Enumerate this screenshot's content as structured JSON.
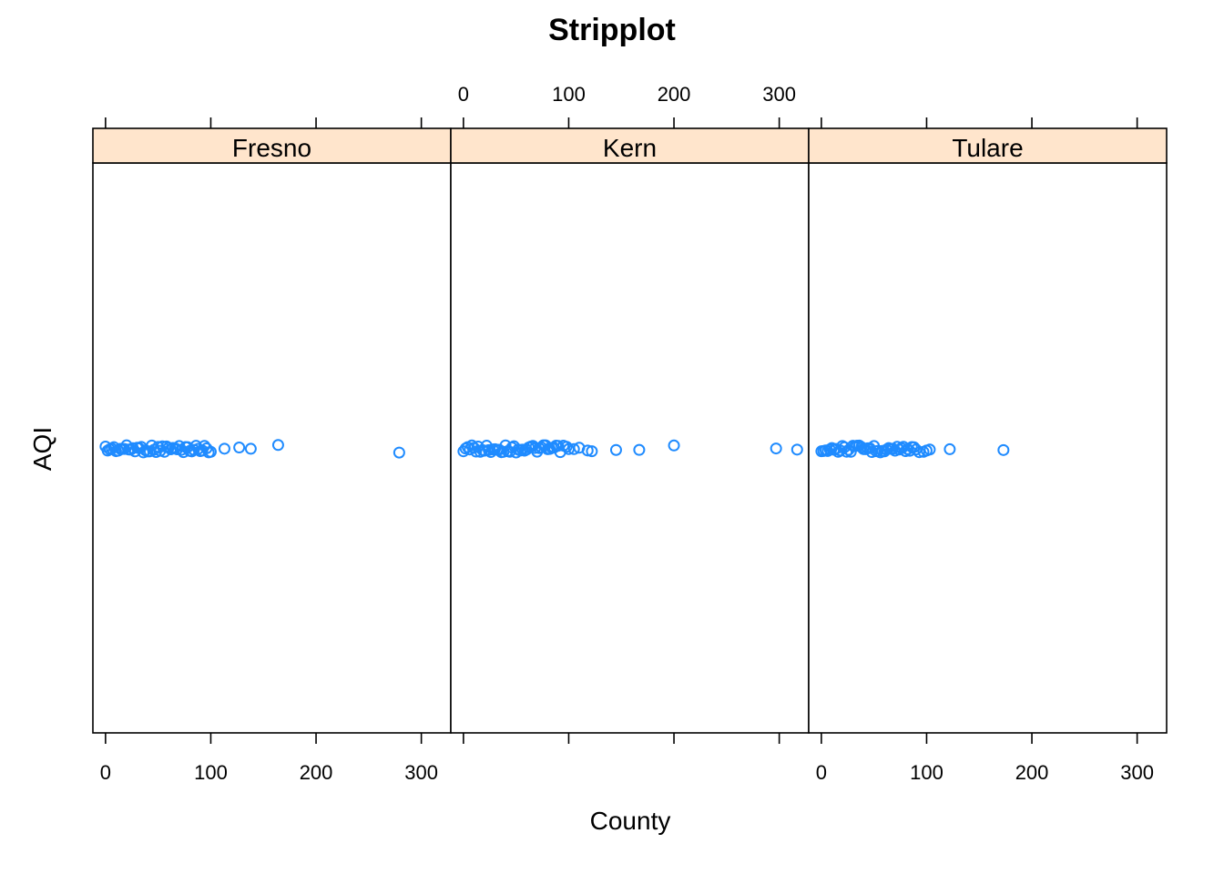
{
  "chart_data": {
    "type": "scatter",
    "title": "Stripplot",
    "xlabel": "County",
    "ylabel": "AQI",
    "xlim": [
      -12,
      328
    ],
    "x_ticks": [
      0,
      100,
      200,
      300
    ],
    "tick_labels": [
      "0",
      "100",
      "200",
      "300"
    ],
    "layout": "1x3 panels with shared x scale; tick labels alternate bottom (panels 1, 3) and top (panel 2)",
    "grid": false,
    "legend": "none",
    "colors": {
      "points": "#1f8bff",
      "strip": "#ffe5cc",
      "frame": "#000000"
    },
    "panels": [
      {
        "name": "Fresno",
        "values": [
          0,
          2,
          4,
          6,
          8,
          10,
          12,
          14,
          16,
          18,
          20,
          22,
          24,
          26,
          28,
          30,
          32,
          34,
          36,
          38,
          40,
          42,
          44,
          46,
          48,
          50,
          52,
          54,
          56,
          58,
          60,
          62,
          64,
          66,
          68,
          70,
          72,
          74,
          76,
          78,
          80,
          82,
          84,
          86,
          88,
          90,
          92,
          94,
          96,
          98,
          100,
          113,
          127,
          138,
          164,
          279
        ]
      },
      {
        "name": "Kern",
        "values": [
          0,
          2,
          4,
          6,
          8,
          10,
          12,
          14,
          16,
          18,
          20,
          22,
          24,
          26,
          28,
          30,
          32,
          34,
          36,
          38,
          40,
          42,
          44,
          46,
          48,
          50,
          52,
          54,
          56,
          58,
          60,
          62,
          64,
          66,
          68,
          70,
          72,
          74,
          76,
          78,
          80,
          82,
          84,
          86,
          88,
          90,
          92,
          95,
          98,
          100,
          105,
          110,
          118,
          122,
          145,
          167,
          200,
          297,
          317
        ]
      },
      {
        "name": "Tulare",
        "values": [
          0,
          2,
          4,
          6,
          8,
          10,
          12,
          14,
          16,
          18,
          20,
          22,
          24,
          26,
          28,
          30,
          32,
          34,
          36,
          38,
          40,
          42,
          44,
          46,
          48,
          50,
          52,
          54,
          56,
          58,
          60,
          62,
          64,
          66,
          68,
          70,
          72,
          74,
          76,
          78,
          80,
          82,
          84,
          86,
          88,
          90,
          93,
          97,
          100,
          103,
          122,
          173
        ]
      }
    ]
  }
}
